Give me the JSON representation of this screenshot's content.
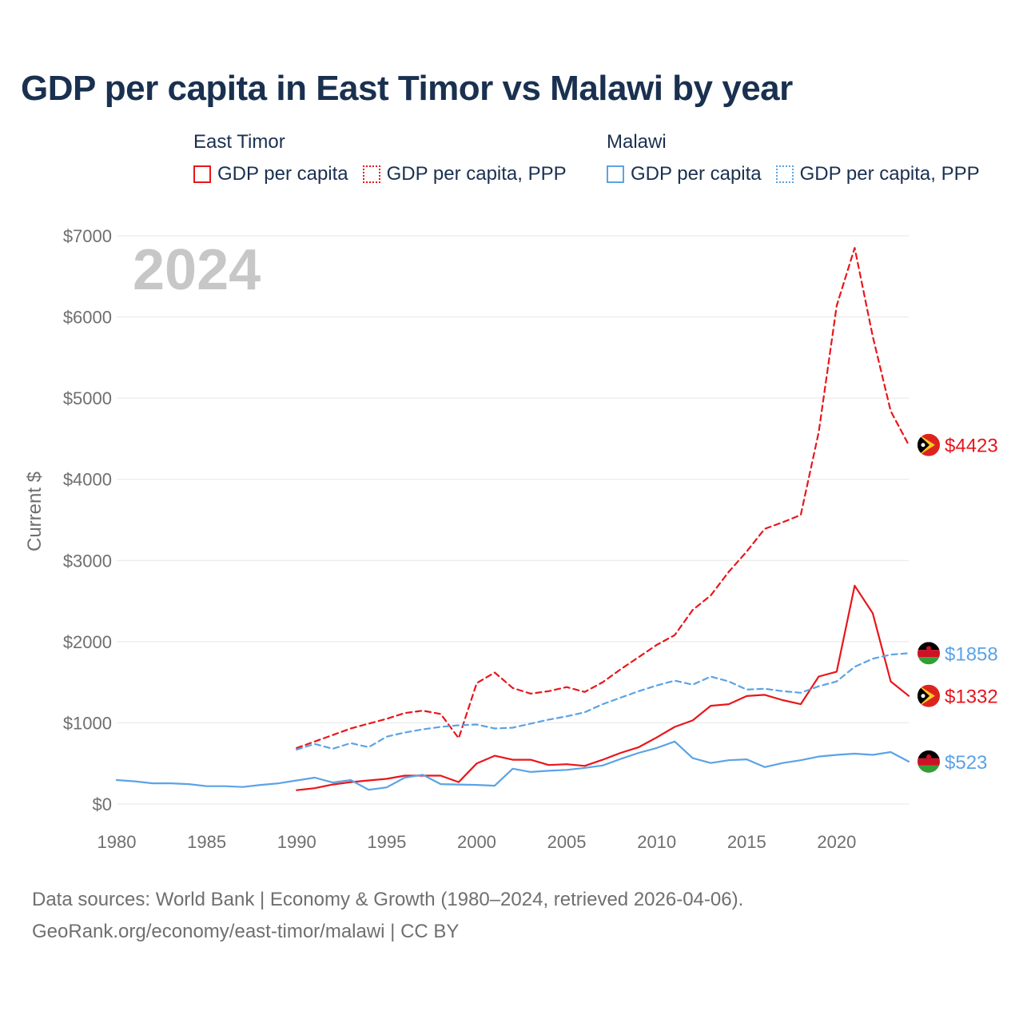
{
  "colors": {
    "east_timor": "#e8161b",
    "malawi": "#5ba3e6",
    "title": "#1a3050",
    "muted": "#6f6f6f",
    "grid": "#e6e6e6"
  },
  "legend": {
    "groups": [
      {
        "name": "East Timor",
        "items": [
          {
            "label": "GDP per capita",
            "style": "solid"
          },
          {
            "label": "GDP per capita, PPP",
            "style": "dotted"
          }
        ]
      },
      {
        "name": "Malawi",
        "items": [
          {
            "label": "GDP per capita",
            "style": "solid"
          },
          {
            "label": "GDP per capita, PPP",
            "style": "dotted"
          }
        ]
      }
    ]
  },
  "footer": {
    "line1": "Data sources: World Bank | Economy & Growth (1980–2024, retrieved 2026-04-06).",
    "line2": "GeoRank.org/economy/east-timor/malawi | CC BY"
  },
  "chart_data": {
    "type": "line",
    "title": "GDP per capita in East Timor vs Malawi by year",
    "year_label": "2024",
    "xlabel": "",
    "ylabel": "Current $",
    "xlim": [
      1980,
      2024
    ],
    "ylim": [
      0,
      7000
    ],
    "x_ticks": [
      1980,
      1985,
      1990,
      1995,
      2000,
      2005,
      2010,
      2015,
      2020
    ],
    "y_ticks": [
      0,
      1000,
      2000,
      3000,
      4000,
      5000,
      6000,
      7000
    ],
    "y_tick_labels": [
      "$0",
      "$1000",
      "$2000",
      "$3000",
      "$4000",
      "$5000",
      "$6000",
      "$7000"
    ],
    "grid": true,
    "series": [
      {
        "name": "East Timor GDP per capita",
        "country": "east_timor",
        "style": "solid",
        "end_label": "$1332",
        "x": [
          1990,
          1991,
          1992,
          1993,
          1994,
          1995,
          1996,
          1997,
          1998,
          1999,
          2000,
          2001,
          2002,
          2003,
          2004,
          2005,
          2006,
          2007,
          2008,
          2009,
          2010,
          2011,
          2012,
          2013,
          2014,
          2015,
          2016,
          2017,
          2018,
          2019,
          2020,
          2021,
          2022,
          2023,
          2024
        ],
        "values": [
          170,
          195,
          240,
          270,
          290,
          310,
          350,
          350,
          350,
          270,
          500,
          595,
          545,
          545,
          480,
          490,
          470,
          545,
          630,
          700,
          820,
          950,
          1030,
          1210,
          1230,
          1330,
          1345,
          1280,
          1230,
          1570,
          1630,
          2690,
          2350,
          1510,
          1332
        ]
      },
      {
        "name": "East Timor GDP per capita, PPP",
        "country": "east_timor",
        "style": "dashed",
        "end_label": "$4423",
        "x": [
          1990,
          1991,
          1992,
          1993,
          1994,
          1995,
          1996,
          1997,
          1998,
          1999,
          2000,
          2001,
          2002,
          2003,
          2004,
          2005,
          2006,
          2007,
          2008,
          2009,
          2010,
          2011,
          2012,
          2013,
          2014,
          2015,
          2016,
          2017,
          2018,
          2019,
          2020,
          2021,
          2022,
          2023,
          2024
        ],
        "values": [
          690,
          770,
          850,
          930,
          990,
          1050,
          1120,
          1150,
          1110,
          810,
          1490,
          1620,
          1430,
          1360,
          1390,
          1440,
          1380,
          1500,
          1660,
          1810,
          1960,
          2080,
          2390,
          2570,
          2860,
          3110,
          3390,
          3470,
          3560,
          4580,
          6140,
          6850,
          5760,
          4840,
          4423
        ]
      },
      {
        "name": "Malawi GDP per capita",
        "country": "malawi",
        "style": "solid",
        "end_label": "$523",
        "x": [
          1980,
          1981,
          1982,
          1983,
          1984,
          1985,
          1986,
          1987,
          1988,
          1989,
          1990,
          1991,
          1992,
          1993,
          1994,
          1995,
          1996,
          1997,
          1998,
          1999,
          2000,
          2001,
          2002,
          2003,
          2004,
          2005,
          2006,
          2007,
          2008,
          2009,
          2010,
          2011,
          2012,
          2013,
          2014,
          2015,
          2016,
          2017,
          2018,
          2019,
          2020,
          2021,
          2022,
          2023,
          2024
        ],
        "values": [
          295,
          280,
          255,
          255,
          245,
          220,
          220,
          210,
          235,
          255,
          290,
          325,
          265,
          295,
          175,
          205,
          325,
          360,
          245,
          240,
          235,
          225,
          435,
          395,
          410,
          420,
          445,
          475,
          555,
          630,
          690,
          770,
          565,
          505,
          540,
          550,
          455,
          505,
          540,
          585,
          605,
          620,
          605,
          640,
          523
        ]
      },
      {
        "name": "Malawi GDP per capita, PPP",
        "country": "malawi",
        "style": "dashed",
        "end_label": "$1858",
        "x": [
          1990,
          1991,
          1992,
          1993,
          1994,
          1995,
          1996,
          1997,
          1998,
          1999,
          2000,
          2001,
          2002,
          2003,
          2004,
          2005,
          2006,
          2007,
          2008,
          2009,
          2010,
          2011,
          2012,
          2013,
          2014,
          2015,
          2016,
          2017,
          2018,
          2019,
          2020,
          2021,
          2022,
          2023,
          2024
        ],
        "values": [
          670,
          740,
          680,
          750,
          700,
          830,
          880,
          920,
          950,
          970,
          980,
          930,
          940,
          990,
          1040,
          1080,
          1130,
          1230,
          1310,
          1390,
          1460,
          1520,
          1470,
          1570,
          1510,
          1410,
          1420,
          1390,
          1370,
          1450,
          1510,
          1690,
          1790,
          1840,
          1858
        ]
      }
    ]
  }
}
